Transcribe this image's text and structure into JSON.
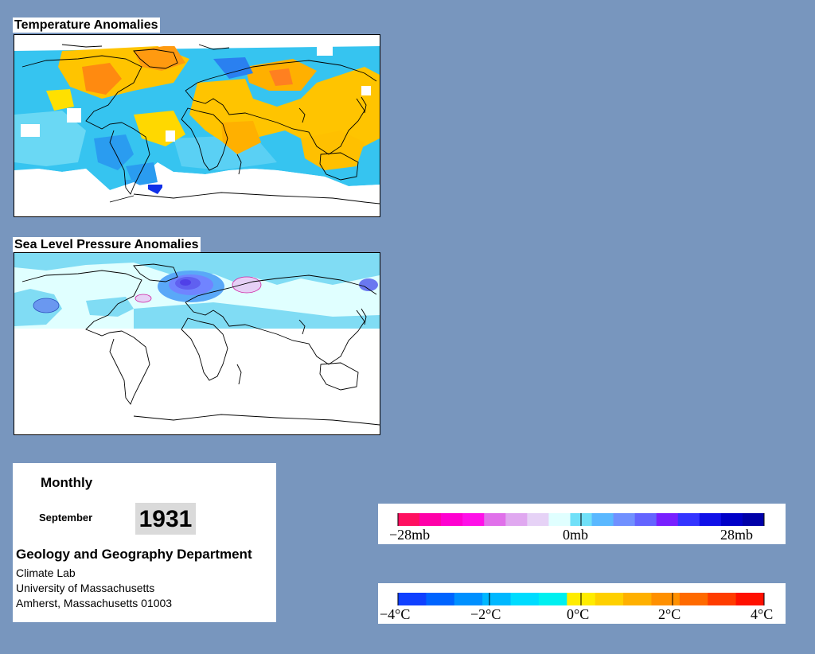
{
  "maps": {
    "temperature_title": "Temperature Anomalies",
    "pressure_title": "Sea Level Pressure Anomalies"
  },
  "info": {
    "period": "Monthly",
    "month": "September",
    "year": "1931",
    "department": "Geology and Geography Department",
    "lab": "Climate Lab",
    "university": "University of Massachusetts",
    "address": "Amherst, Massachusetts 01003"
  },
  "pressure_scale": {
    "labels": [
      "−28mb",
      "0mb",
      "28mb"
    ],
    "colors": [
      "#ff1060",
      "#ff00a8",
      "#ff00d0",
      "#ff10e8",
      "#e070ea",
      "#e0a8f0",
      "#e6d2f6",
      "#e0ffff",
      "#70e0f8",
      "#5ab8ff",
      "#7090ff",
      "#6464ff",
      "#7820ff",
      "#3434ff",
      "#1010e8",
      "#0000c8",
      "#0000a8"
    ]
  },
  "temperature_scale": {
    "labels": [
      "−4°C",
      "−2°C",
      "0°C",
      "2°C",
      "4°C"
    ],
    "colors": [
      "#1040ff",
      "#0064ff",
      "#0090ff",
      "#00b8ff",
      "#00dcff",
      "#00f0f0",
      "#ffec00",
      "#ffd000",
      "#ffb000",
      "#ff9000",
      "#ff6a00",
      "#ff3c00",
      "#ff1000"
    ]
  }
}
